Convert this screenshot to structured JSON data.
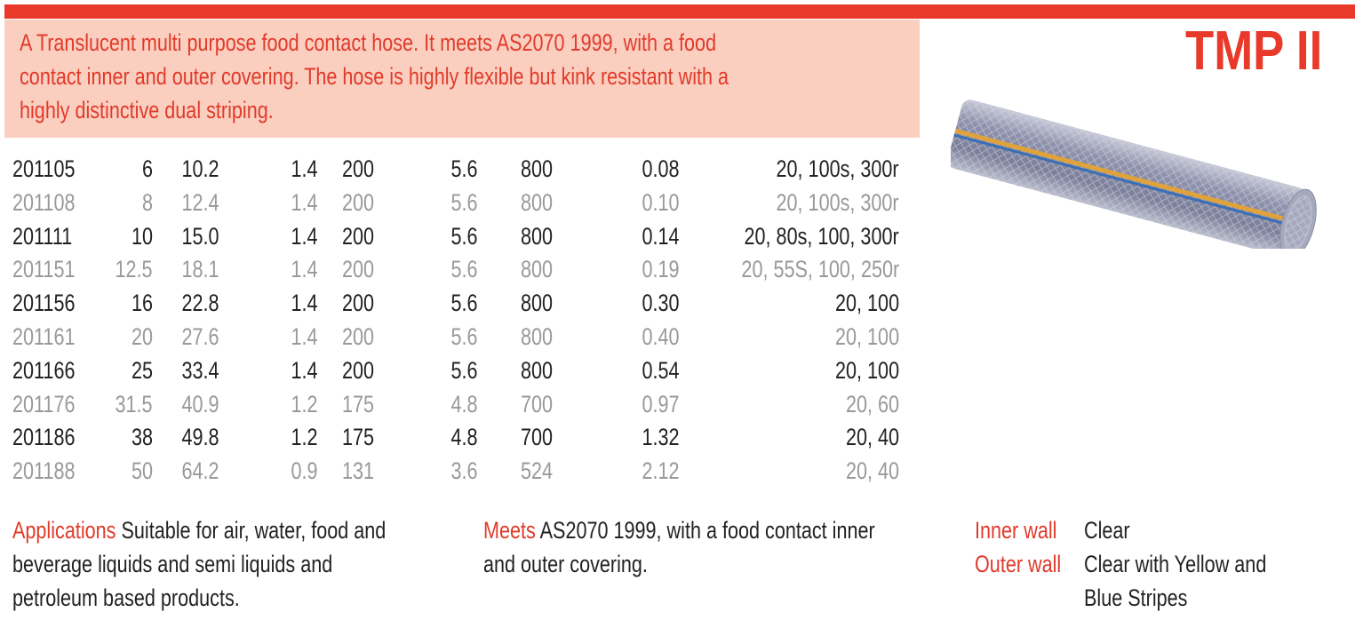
{
  "header": {
    "title": "TMP II",
    "intro": "A Translucent multi purpose food contact hose. It meets AS2070 1999, with a food contact inner and outer covering. The hose is highly flexible but kink resistant with a highly distinctive dual striping."
  },
  "table": {
    "rows": [
      [
        "201105",
        "6",
        "10.2",
        "1.4",
        "200",
        "5.6",
        "800",
        "0.08",
        "20, 100s, 300r"
      ],
      [
        "201108",
        "8",
        "12.4",
        "1.4",
        "200",
        "5.6",
        "800",
        "0.10",
        "20, 100s, 300r"
      ],
      [
        "201111",
        "10",
        "15.0",
        "1.4",
        "200",
        "5.6",
        "800",
        "0.14",
        "20, 80s, 100, 300r"
      ],
      [
        "201151",
        "12.5",
        "18.1",
        "1.4",
        "200",
        "5.6",
        "800",
        "0.19",
        "20, 55S, 100, 250r"
      ],
      [
        "201156",
        "16",
        "22.8",
        "1.4",
        "200",
        "5.6",
        "800",
        "0.30",
        "20, 100"
      ],
      [
        "201161",
        "20",
        "27.6",
        "1.4",
        "200",
        "5.6",
        "800",
        "0.40",
        "20, 100"
      ],
      [
        "201166",
        "25",
        "33.4",
        "1.4",
        "200",
        "5.6",
        "800",
        "0.54",
        "20, 100"
      ],
      [
        "201176",
        "31.5",
        "40.9",
        "1.2",
        "175",
        "4.8",
        "700",
        "0.97",
        "20, 60"
      ],
      [
        "201186",
        "38",
        "49.8",
        "1.2",
        "175",
        "4.8",
        "700",
        "1.32",
        "20, 40"
      ],
      [
        "201188",
        "50",
        "64.2",
        "0.9",
        "131",
        "3.6",
        "524",
        "2.12",
        "20, 40"
      ]
    ]
  },
  "applications": {
    "label": "Applications",
    "text": "Suitable for air, water, food and beverage liquids and semi liquids and petroleum based products."
  },
  "meets": {
    "label": "Meets",
    "text": "AS2070 1999, with a food contact inner and outer covering."
  },
  "walls": [
    {
      "label": "Inner wall",
      "text": "Clear"
    },
    {
      "label": "Outer wall",
      "text": "Clear with Yellow and Blue Stripes"
    }
  ]
}
